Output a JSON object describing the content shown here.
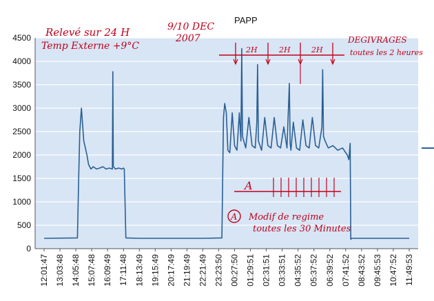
{
  "chart_data": {
    "type": "line",
    "title": "PAPP",
    "xlabel": "",
    "ylabel": "",
    "ylim": [
      0,
      4500
    ],
    "yticks": [
      0,
      500,
      1000,
      1500,
      2000,
      2500,
      3000,
      3500,
      4000,
      4500
    ],
    "grid": true,
    "legend": "right",
    "categories": [
      "12:01:47",
      "13:03:48",
      "14:05:48",
      "15:07:48",
      "16:09:49",
      "17:11:48",
      "18:13:49",
      "19:15:49",
      "20:17:49",
      "21:19:49",
      "22:21:49",
      "23:23:50",
      "00:27:50",
      "01:29:51",
      "02:31:51",
      "03:33:51",
      "04:35:52",
      "05:37:52",
      "06:39:52",
      "07:41:52",
      "08:43:52",
      "09:45:53",
      "10:47:52",
      "11:49:53"
    ],
    "series": [
      {
        "name": "PAPP",
        "color": "#2a5f93",
        "x": [
          0,
          2.1,
          2.18,
          2.25,
          2.35,
          2.5,
          2.7,
          2.8,
          2.95,
          3.1,
          3.3,
          3.5,
          3.7,
          3.9,
          4.1,
          4.3,
          4.33,
          4.36,
          4.5,
          4.7,
          4.9,
          5.0,
          5.05,
          5.15,
          6,
          8,
          10,
          11.2,
          11.3,
          11.38,
          11.48,
          11.58,
          11.7,
          11.85,
          12.0,
          12.15,
          12.3,
          12.4,
          12.45,
          12.5,
          12.7,
          12.9,
          13.1,
          13.3,
          13.4,
          13.45,
          13.5,
          13.7,
          13.9,
          14.1,
          14.3,
          14.5,
          14.7,
          14.9,
          15.1,
          15.3,
          15.45,
          15.5,
          15.55,
          15.7,
          15.9,
          16.1,
          16.3,
          16.5,
          16.7,
          16.9,
          17.1,
          17.3,
          17.5,
          17.55,
          17.6,
          17.7,
          17.9,
          18.2,
          18.5,
          18.8,
          19.1,
          19.2,
          19.28,
          19.32,
          19.38,
          21,
          23
        ],
        "y": [
          220,
          230,
          1500,
          2500,
          3000,
          2300,
          2000,
          1800,
          1700,
          1750,
          1700,
          1720,
          1750,
          1700,
          1720,
          1700,
          3780,
          1750,
          1700,
          1720,
          1700,
          1720,
          1700,
          230,
          220,
          220,
          220,
          230,
          2800,
          3100,
          2900,
          2100,
          2050,
          2900,
          2200,
          2100,
          2900,
          2300,
          4270,
          2400,
          2150,
          2800,
          2200,
          2150,
          2700,
          3930,
          2300,
          2100,
          2800,
          2200,
          2150,
          2800,
          2200,
          2150,
          2600,
          2150,
          3530,
          2250,
          2100,
          2700,
          2150,
          2100,
          2750,
          2200,
          2150,
          2800,
          2200,
          2150,
          2600,
          3820,
          2400,
          2300,
          2150,
          2200,
          2100,
          2150,
          2000,
          1900,
          2250,
          200,
          220,
          220,
          220
        ]
      }
    ],
    "annotations": {
      "top_left": [
        "Relevé sur 24 H",
        "Temp Externe +9°C"
      ],
      "date": [
        "9/10 DEC",
        "2007"
      ],
      "top_right": [
        "DEGIVRAGES",
        "toutes les 2 heures"
      ],
      "interval_labels": [
        "2H",
        "2H",
        "2H"
      ],
      "letter_a": "A",
      "circled_a": "A",
      "bottom_note": [
        "Modif de regime",
        "toutes les 30 Minutes"
      ]
    }
  }
}
